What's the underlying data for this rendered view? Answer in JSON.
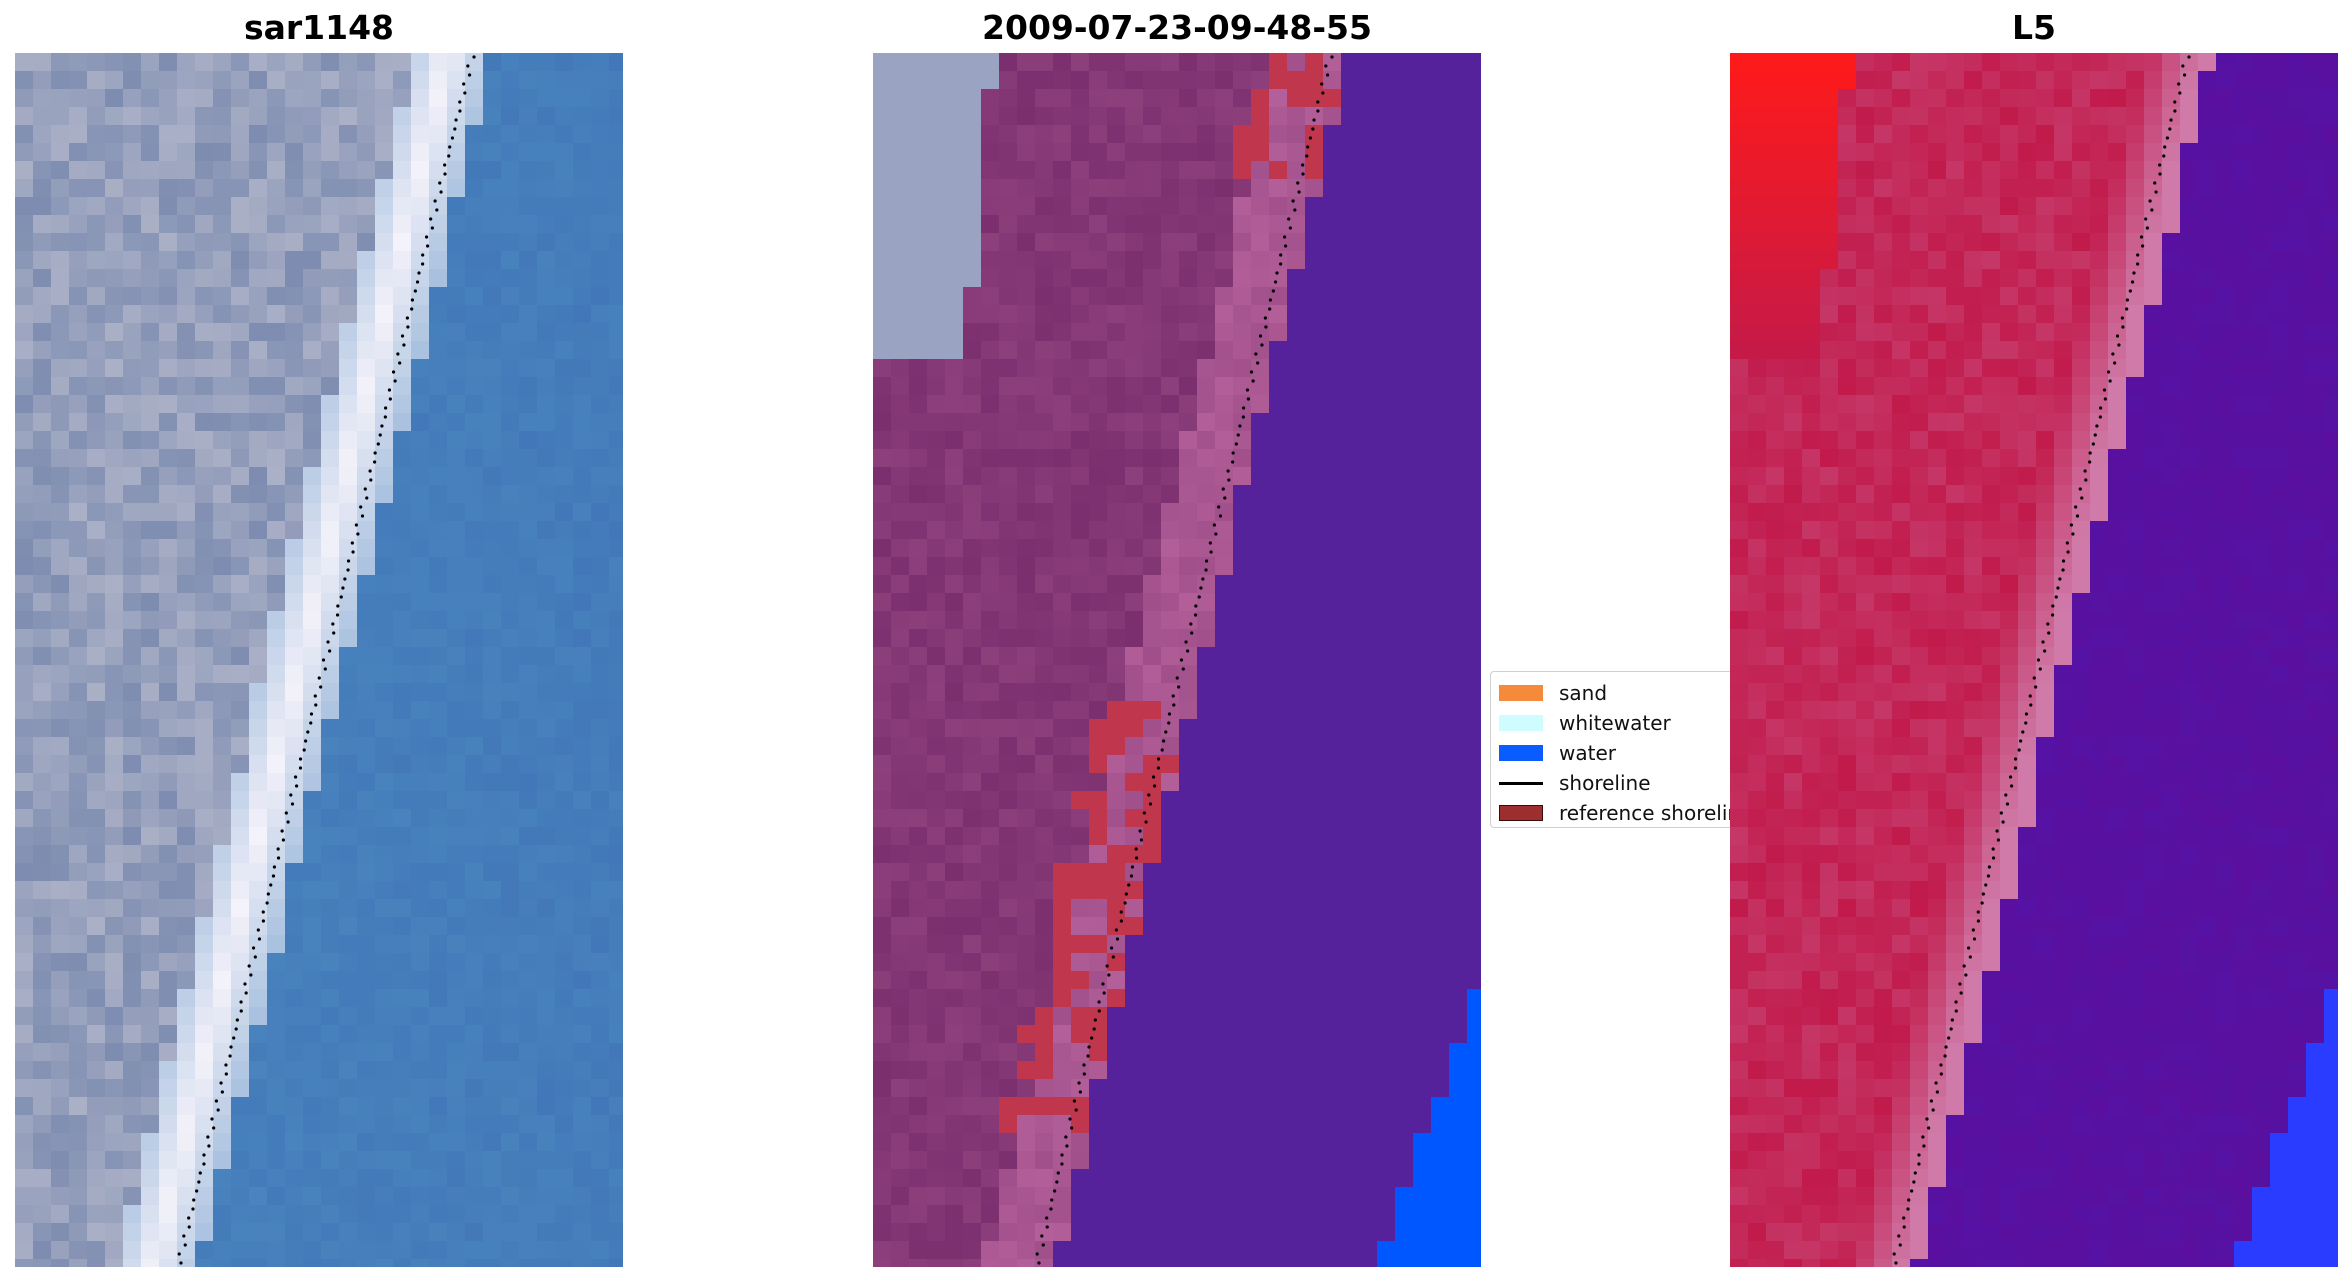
{
  "panels": [
    {
      "title": "sar1148",
      "style": "rgb-satellite",
      "colors": {
        "land_light": "#aab0c6",
        "land_dark": "#7d8cb0",
        "surf": "#f4f2fa",
        "water": "#4a86bf",
        "water_deep": "#4176b8"
      }
    },
    {
      "title": "2009-07-23-09-48-55",
      "style": "classified",
      "colors": {
        "land": "#8d3f7c",
        "land_dark": "#7b2f6e",
        "land_light": "#b35f99",
        "sand_ref": "#c0364d",
        "whitewater": "#9aa3c2",
        "water": "#55229b",
        "water_edge": "#0056ff"
      }
    },
    {
      "title": "L5",
      "style": "probability",
      "colors": {
        "land": "#c11a4b",
        "land_bright": "#ff1a1a",
        "transition": "#cf7aa8",
        "water": "#5a0f9e",
        "water_edge": "#2a3cff"
      }
    }
  ],
  "legend": {
    "items": [
      {
        "label": "sand",
        "color": "#f58a3a",
        "type": "patch"
      },
      {
        "label": "whitewater",
        "color": "#cffcff",
        "type": "patch"
      },
      {
        "label": "water",
        "color": "#0a5cff",
        "type": "patch"
      },
      {
        "label": "shoreline",
        "color": "#000000",
        "type": "line"
      },
      {
        "label": "reference shoreline",
        "color": "#9b2f2f",
        "type": "patch-outlined"
      }
    ]
  }
}
